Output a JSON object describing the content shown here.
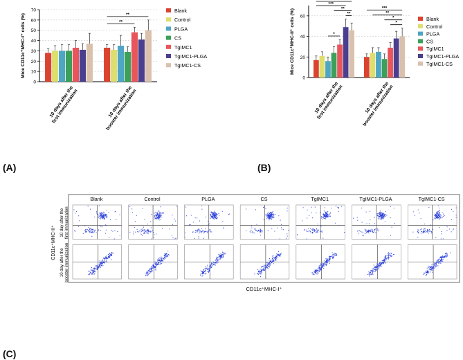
{
  "colors": [
    "#d9432f",
    "#dede6e",
    "#4fa6c4",
    "#3ba05a",
    "#e8555a",
    "#4a3f8f",
    "#d9c1ae"
  ],
  "groups": [
    "Blank",
    "Control",
    "PLGA",
    "CS",
    "TgIMC1",
    "TgIMC1-PLGA",
    "TgIMC1-CS"
  ],
  "chart_data": [
    {
      "type": "bar",
      "ylabel": "Mice CD11c⁺MHC-I⁺ cells (%)",
      "ylim": [
        0,
        70
      ],
      "yticks": [
        "0",
        "10",
        "20",
        "30",
        "40",
        "50",
        "60",
        "70"
      ],
      "categories": [
        "10 days after the\nfirst immunization",
        "10 days after the\nbooster immunization"
      ],
      "series": [
        {
          "name": "Blank",
          "values": [
            28,
            33
          ],
          "errors": [
            4,
            3
          ]
        },
        {
          "name": "Control",
          "values": [
            30,
            31
          ],
          "errors": [
            5,
            5
          ]
        },
        {
          "name": "PLGA",
          "values": [
            30,
            35
          ],
          "errors": [
            6,
            10
          ]
        },
        {
          "name": "CS",
          "values": [
            30,
            29
          ],
          "errors": [
            6,
            5
          ]
        },
        {
          "name": "TgIMC1",
          "values": [
            33,
            48
          ],
          "errors": [
            7,
            5
          ]
        },
        {
          "name": "TgIMC1-PLGA",
          "values": [
            31,
            41
          ],
          "errors": [
            6,
            6
          ]
        },
        {
          "name": "TgIMC1-CS",
          "values": [
            37,
            50
          ],
          "errors": [
            10,
            10
          ]
        }
      ],
      "significance": [
        {
          "from": [
            "10 days after the\nbooster immunization",
            "Blank"
          ],
          "to": [
            "10 days after the\nbooster immunization",
            "TgIMC1-CS"
          ],
          "label": "**"
        },
        {
          "from": [
            "10 days after the\nbooster immunization",
            "Blank"
          ],
          "to": [
            "10 days after the\nbooster immunization",
            "TgIMC1"
          ],
          "label": "**"
        }
      ],
      "legend_position": "right",
      "panel_label": "(A)"
    },
    {
      "type": "bar",
      "ylabel": "Mice CD11c⁺MHC-II⁺ cells (%)",
      "ylim": [
        0,
        70
      ],
      "yticks": [
        "0",
        "20",
        "40",
        "60"
      ],
      "categories": [
        "10 days after the\nfirst immunization",
        "10 days after the\nbooster immunization"
      ],
      "series": [
        {
          "name": "Blank",
          "values": [
            17,
            20
          ],
          "errors": [
            4,
            3
          ]
        },
        {
          "name": "Control",
          "values": [
            21,
            24
          ],
          "errors": [
            4,
            5
          ]
        },
        {
          "name": "PLGA",
          "values": [
            16,
            25
          ],
          "errors": [
            4,
            4
          ]
        },
        {
          "name": "CS",
          "values": [
            24,
            18
          ],
          "errors": [
            6,
            5
          ]
        },
        {
          "name": "TgIMC1",
          "values": [
            32,
            29
          ],
          "errors": [
            5,
            5
          ]
        },
        {
          "name": "TgIMC1-PLGA",
          "values": [
            49,
            38
          ],
          "errors": [
            8,
            7
          ]
        },
        {
          "name": "TgIMC1-CS",
          "values": [
            46,
            40
          ],
          "errors": [
            7,
            8
          ]
        }
      ],
      "significance": [
        {
          "from": [
            "10 days after the\nfirst immunization",
            "Blank"
          ],
          "to": [
            "10 days after the\nfirst immunization",
            "TgIMC1-CS"
          ],
          "label": "***"
        },
        {
          "from": [
            "10 days after the\nfirst immunization",
            "Blank"
          ],
          "to": [
            "10 days after the\nfirst immunization",
            "TgIMC1-PLGA"
          ],
          "label": "***"
        },
        {
          "from": [
            "10 days after the\nfirst immunization",
            "CS"
          ],
          "to": [
            "10 days after the\nfirst immunization",
            "TgIMC1-CS"
          ],
          "label": "**"
        },
        {
          "from": [
            "10 days after the\nfirst immunization",
            "TgIMC1-PLGA"
          ],
          "to": [
            "10 days after the\nfirst immunization",
            "TgIMC1-CS"
          ],
          "label": "**"
        },
        {
          "from": [
            "10 days after the\nfirst immunization",
            "PLGA"
          ],
          "to": [
            "10 days after the\nfirst immunization",
            "TgIMC1"
          ],
          "label": "*"
        },
        {
          "from": [
            "10 days after the\nbooster immunization",
            "Blank"
          ],
          "to": [
            "10 days after the\nbooster immunization",
            "TgIMC1-CS"
          ],
          "label": "***"
        },
        {
          "from": [
            "10 days after the\nbooster immunization",
            "Control"
          ],
          "to": [
            "10 days after the\nbooster immunization",
            "TgIMC1-CS"
          ],
          "label": "**"
        },
        {
          "from": [
            "10 days after the\nbooster immunization",
            "CS"
          ],
          "to": [
            "10 days after the\nbooster immunization",
            "TgIMC1-CS"
          ],
          "label": "*"
        },
        {
          "from": [
            "10 days after the\nbooster immunization",
            "TgIMC1"
          ],
          "to": [
            "10 days after the\nbooster immunization",
            "TgIMC1-CS"
          ],
          "label": "*"
        }
      ],
      "legend_position": "right",
      "panel_label": "(B)"
    },
    {
      "type": "scatter",
      "columns": [
        "Blank",
        "Control",
        "PLGA",
        "CS",
        "TgIMC1",
        "TgIMC1-PLGA",
        "TgIMC1-CS"
      ],
      "rows": [
        "10 day after the\nfirst immunization",
        "10 day after the\nbooster immunization"
      ],
      "ylabel": "CD11c⁺MHC-II⁺",
      "xlabel": "CD11c⁺MHC-I⁺",
      "panel_label": "(C)"
    }
  ]
}
